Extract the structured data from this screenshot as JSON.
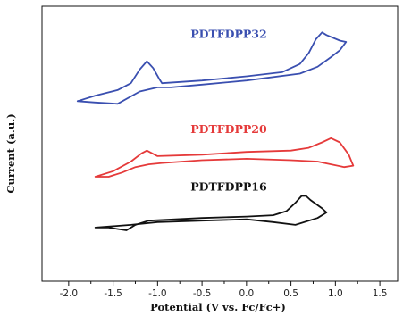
{
  "chart_data": {
    "type": "line",
    "title": "",
    "xlabel": "Potential (V vs. Fc/Fc+)",
    "ylabel": "Current (a.u.)",
    "xlim": [
      -2.3,
      1.7
    ],
    "ylim": [
      0,
      10
    ],
    "x_ticks": [
      -2.0,
      -1.5,
      -1.0,
      -0.5,
      0.0,
      0.5,
      1.0,
      1.5
    ],
    "x_tick_labels": [
      "-2.0",
      "-1.5",
      "-1.0",
      "-0.5",
      "0.0",
      "0.5",
      "1.0",
      "1.5"
    ],
    "y_ticks_shown": false,
    "grid": false,
    "legend": "none",
    "series": [
      {
        "name": "PDTFDPP32",
        "color": "#3a4fb0",
        "x": [
          -1.9,
          -1.7,
          -1.45,
          -1.3,
          -1.2,
          -1.12,
          -1.05,
          -0.98,
          -0.95,
          -0.5,
          0.0,
          0.4,
          0.6,
          0.7,
          0.78,
          0.85,
          0.9,
          1.05,
          1.12,
          1.05,
          0.95,
          0.8,
          0.6,
          0.0,
          -0.5,
          -0.85,
          -1.0,
          -1.2,
          -1.45,
          -1.7,
          -1.9
        ],
        "y": [
          6.55,
          6.75,
          6.95,
          7.2,
          7.7,
          8.0,
          7.75,
          7.35,
          7.2,
          7.3,
          7.45,
          7.6,
          7.9,
          8.3,
          8.8,
          9.05,
          8.95,
          8.75,
          8.7,
          8.4,
          8.15,
          7.8,
          7.55,
          7.3,
          7.15,
          7.05,
          7.05,
          6.9,
          6.45,
          6.5,
          6.55
        ]
      },
      {
        "name": "PDTFDPP20",
        "color": "#e53a3a",
        "x": [
          -1.7,
          -1.5,
          -1.3,
          -1.18,
          -1.12,
          -1.0,
          -0.5,
          0.0,
          0.5,
          0.7,
          0.85,
          0.95,
          1.05,
          1.15,
          1.2,
          1.1,
          0.95,
          0.8,
          0.5,
          0.0,
          -0.5,
          -0.95,
          -1.1,
          -1.25,
          -1.4,
          -1.55,
          -1.7
        ],
        "y": [
          3.8,
          4.0,
          4.35,
          4.65,
          4.75,
          4.55,
          4.6,
          4.7,
          4.75,
          4.85,
          5.05,
          5.2,
          5.05,
          4.6,
          4.2,
          4.15,
          4.25,
          4.35,
          4.4,
          4.45,
          4.4,
          4.3,
          4.25,
          4.15,
          3.95,
          3.8,
          3.8
        ]
      },
      {
        "name": "PDTFDPP16",
        "color": "#111111",
        "x": [
          -1.7,
          -1.55,
          -1.45,
          -1.35,
          -1.25,
          -1.1,
          -0.8,
          -0.5,
          0.0,
          0.3,
          0.45,
          0.55,
          0.62,
          0.67,
          0.72,
          0.85,
          0.9,
          0.8,
          0.55,
          0.3,
          0.0,
          -0.5,
          -1.0,
          -1.3,
          -1.5,
          -1.7
        ],
        "y": [
          1.95,
          1.95,
          1.9,
          1.85,
          2.05,
          2.2,
          2.25,
          2.3,
          2.35,
          2.4,
          2.55,
          2.85,
          3.1,
          3.1,
          2.95,
          2.65,
          2.5,
          2.3,
          2.05,
          2.15,
          2.25,
          2.2,
          2.15,
          2.05,
          2.0,
          1.95
        ]
      }
    ]
  }
}
